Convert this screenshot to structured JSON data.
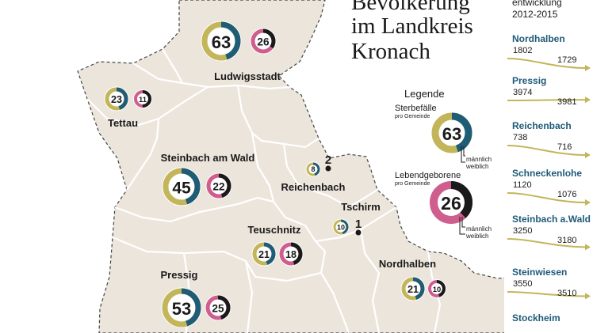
{
  "title": [
    "Bevölkerung",
    "im Landkreis",
    "Kronach"
  ],
  "colors": {
    "map_fill": "#ece5dc",
    "male": "#1f5c75",
    "female_deaths": "#c3b55a",
    "female_births": "#cf5e8f",
    "births_male": "#1a1a1a",
    "trend_line": "#c3b55a"
  },
  "legend": {
    "title": "Legende",
    "deaths": {
      "label": "Sterbefälle",
      "sub": "pro Gemeinde",
      "value": "63"
    },
    "births": {
      "label": "Lebendgeborene",
      "sub": "pro Gemeinde",
      "value": "26"
    },
    "male": "männlich",
    "female": "weiblich"
  },
  "towns": [
    {
      "name": "Ludwigsstadt",
      "deaths": "63",
      "births": "26"
    },
    {
      "name": "Tettau",
      "deaths": "23",
      "births": "11"
    },
    {
      "name": "Steinbach am Wald",
      "deaths": "45",
      "births": "22"
    },
    {
      "name": "Reichenbach",
      "deaths": "8",
      "births": "2"
    },
    {
      "name": "Tschirm",
      "deaths": "10",
      "births": "1"
    },
    {
      "name": "Teuschnitz",
      "deaths": "21",
      "births": "18"
    },
    {
      "name": "Nordhalben",
      "deaths": "21",
      "births": "10"
    },
    {
      "name": "Pressig",
      "deaths": "53",
      "births": "25"
    }
  ],
  "side": {
    "heading": [
      "entwicklung",
      "2012-2015"
    ],
    "towns": [
      {
        "name": "Nordhalben",
        "v2012": "1802",
        "v2015": "1729"
      },
      {
        "name": "Pressig",
        "v2012": "3974",
        "v2015": "3981"
      },
      {
        "name": "Reichenbach",
        "v2012": "738",
        "v2015": "716"
      },
      {
        "name": "Schneckenlohe",
        "v2012": "1120",
        "v2015": "1076"
      },
      {
        "name": "Steinbach a.Wald",
        "v2012": "3250",
        "v2015": "3180"
      },
      {
        "name": "Steinwiesen",
        "v2012": "3550",
        "v2015": "3510"
      },
      {
        "name": "Stockheim",
        "v2012": "",
        "v2015": ""
      }
    ]
  }
}
